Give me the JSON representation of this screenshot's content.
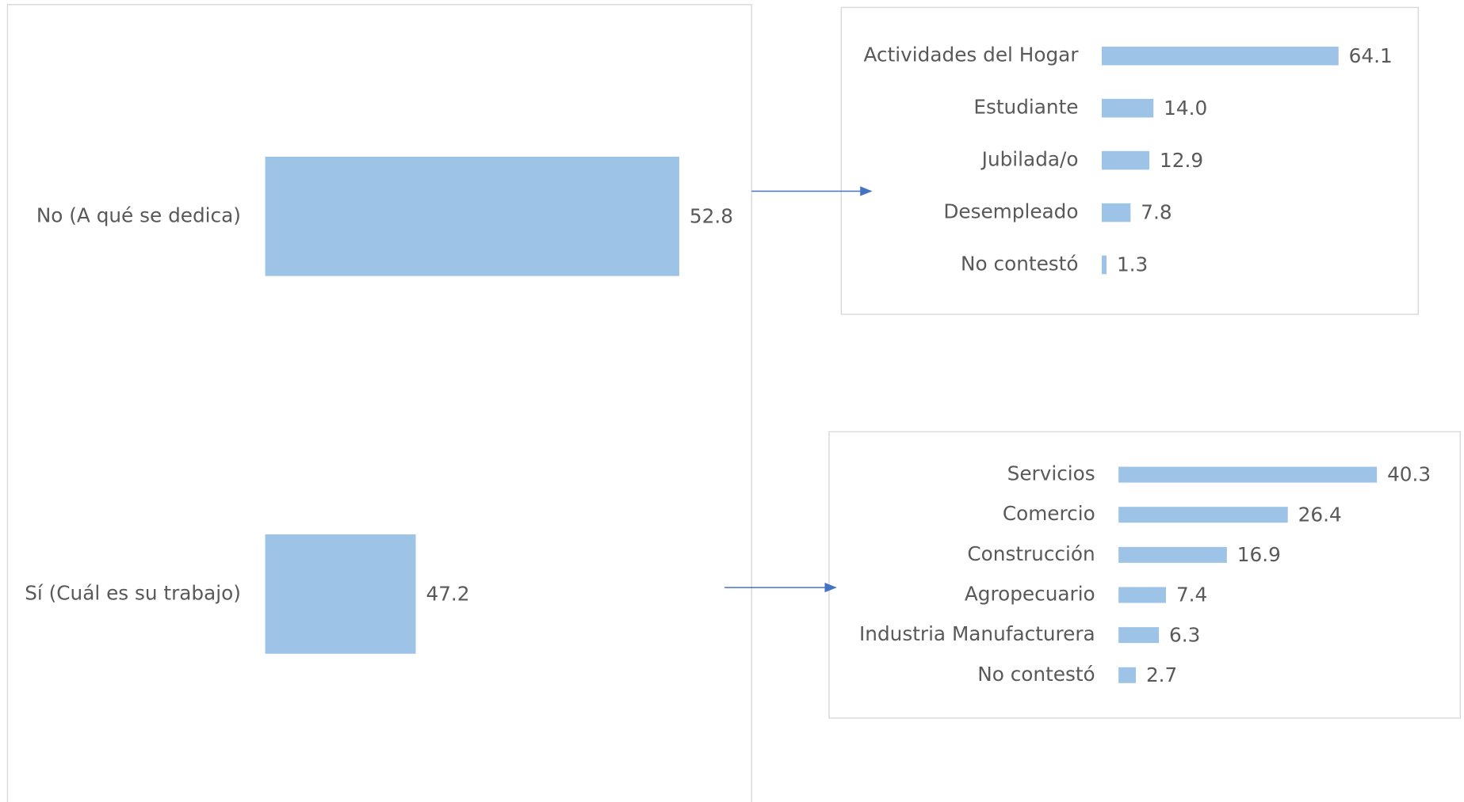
{
  "chart_data": [
    {
      "type": "bar",
      "orientation": "horizontal",
      "categories": [
        "No (A qué se dedica)",
        "Sí (Cuál es su trabajo)"
      ],
      "values": [
        52.8,
        47.2
      ],
      "value_labels": [
        "52.8",
        "47.2"
      ],
      "color": "#9dc3e6",
      "xlim": [
        44,
        54
      ]
    },
    {
      "type": "bar",
      "orientation": "horizontal",
      "categories": [
        "Actividades del Hogar",
        "Estudiante",
        "Jubilada/o",
        "Desempleado",
        "No contestó"
      ],
      "values": [
        64.1,
        14.0,
        12.9,
        7.8,
        1.3
      ],
      "value_labels": [
        "64.1",
        "14.0",
        "12.9",
        "7.8",
        "1.3"
      ],
      "color": "#9dc3e6",
      "xlim": [
        0,
        70
      ]
    },
    {
      "type": "bar",
      "orientation": "horizontal",
      "categories": [
        "Servicios",
        "Comercio",
        "Construcción",
        "Agropecuario",
        "Industria Manufacturera",
        "No contestó"
      ],
      "values": [
        40.3,
        26.4,
        16.9,
        7.4,
        6.3,
        2.7
      ],
      "value_labels": [
        "40.3",
        "26.4",
        "16.9",
        "7.4",
        "6.3",
        "2.7"
      ],
      "color": "#9dc3e6",
      "xlim": [
        0,
        45
      ]
    }
  ]
}
